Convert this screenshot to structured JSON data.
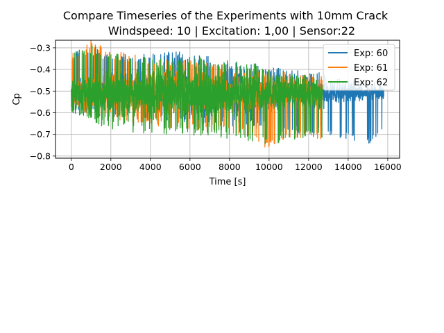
{
  "chart_data": {
    "type": "line",
    "title_lines": [
      "Compare Timeseries of the Experiments with 10mm Crack",
      "Windspeed: 10 | Excitation: 1,00 | Sensor:22"
    ],
    "xlabel": "Time [s]",
    "ylabel": "Cp",
    "xlim": [
      -800,
      16600
    ],
    "ylim": [
      -0.81,
      -0.265
    ],
    "xticks": [
      0,
      2000,
      4000,
      6000,
      8000,
      10000,
      12000,
      14000,
      16000
    ],
    "xtick_labels": [
      "0",
      "2000",
      "4000",
      "6000",
      "8000",
      "10000",
      "12000",
      "14000",
      "16000"
    ],
    "yticks": [
      -0.3,
      -0.4,
      -0.5,
      -0.6,
      -0.7,
      -0.8
    ],
    "ytick_labels": [
      "−0.3",
      "−0.4",
      "−0.5",
      "−0.6",
      "−0.7",
      "−0.8"
    ],
    "grid": true,
    "legend_position": "top-right",
    "series": [
      {
        "name": "Exp: 60",
        "color": "#1f77b4",
        "x_range": [
          0,
          15800
        ],
        "mean": -0.51,
        "x": [
          0,
          1000,
          2000,
          3000,
          4000,
          5000,
          6000,
          7000,
          8000,
          9000,
          10000,
          11000,
          12000,
          12700,
          13000,
          14000,
          15000,
          15800
        ],
        "min": [
          -0.6,
          -0.62,
          -0.62,
          -0.63,
          -0.64,
          -0.65,
          -0.66,
          -0.66,
          -0.67,
          -0.67,
          -0.68,
          -0.69,
          -0.7,
          -0.7,
          -0.71,
          -0.73,
          -0.75,
          -0.7
        ],
        "max": [
          -0.31,
          -0.3,
          -0.32,
          -0.33,
          -0.32,
          -0.31,
          -0.33,
          -0.34,
          -0.36,
          -0.37,
          -0.38,
          -0.4,
          -0.41,
          -0.41,
          -0.43,
          -0.45,
          -0.46,
          -0.46
        ]
      },
      {
        "name": "Exp: 61",
        "color": "#ff7f0e",
        "x_range": [
          0,
          12700
        ],
        "mean": -0.51,
        "x": [
          0,
          1000,
          2000,
          3000,
          4000,
          5000,
          6000,
          7000,
          8000,
          9000,
          9800,
          11000,
          12000,
          12700
        ],
        "min": [
          -0.6,
          -0.62,
          -0.63,
          -0.65,
          -0.66,
          -0.67,
          -0.68,
          -0.69,
          -0.7,
          -0.71,
          -0.78,
          -0.72,
          -0.72,
          -0.72
        ],
        "max": [
          -0.33,
          -0.26,
          -0.31,
          -0.33,
          -0.34,
          -0.35,
          -0.36,
          -0.37,
          -0.38,
          -0.39,
          -0.4,
          -0.41,
          -0.42,
          -0.42
        ]
      },
      {
        "name": "Exp: 62",
        "color": "#2ca02c",
        "x_range": [
          0,
          12700
        ],
        "mean": -0.51,
        "x": [
          0,
          1000,
          2000,
          3000,
          4000,
          5000,
          6000,
          7000,
          8000,
          9000,
          10000,
          11000,
          12000,
          12700
        ],
        "min": [
          -0.6,
          -0.64,
          -0.68,
          -0.69,
          -0.7,
          -0.7,
          -0.71,
          -0.71,
          -0.72,
          -0.73,
          -0.75,
          -0.73,
          -0.72,
          -0.72
        ],
        "max": [
          -0.3,
          -0.29,
          -0.32,
          -0.33,
          -0.34,
          -0.35,
          -0.34,
          -0.35,
          -0.36,
          -0.37,
          -0.38,
          -0.4,
          -0.42,
          -0.42
        ]
      }
    ]
  }
}
